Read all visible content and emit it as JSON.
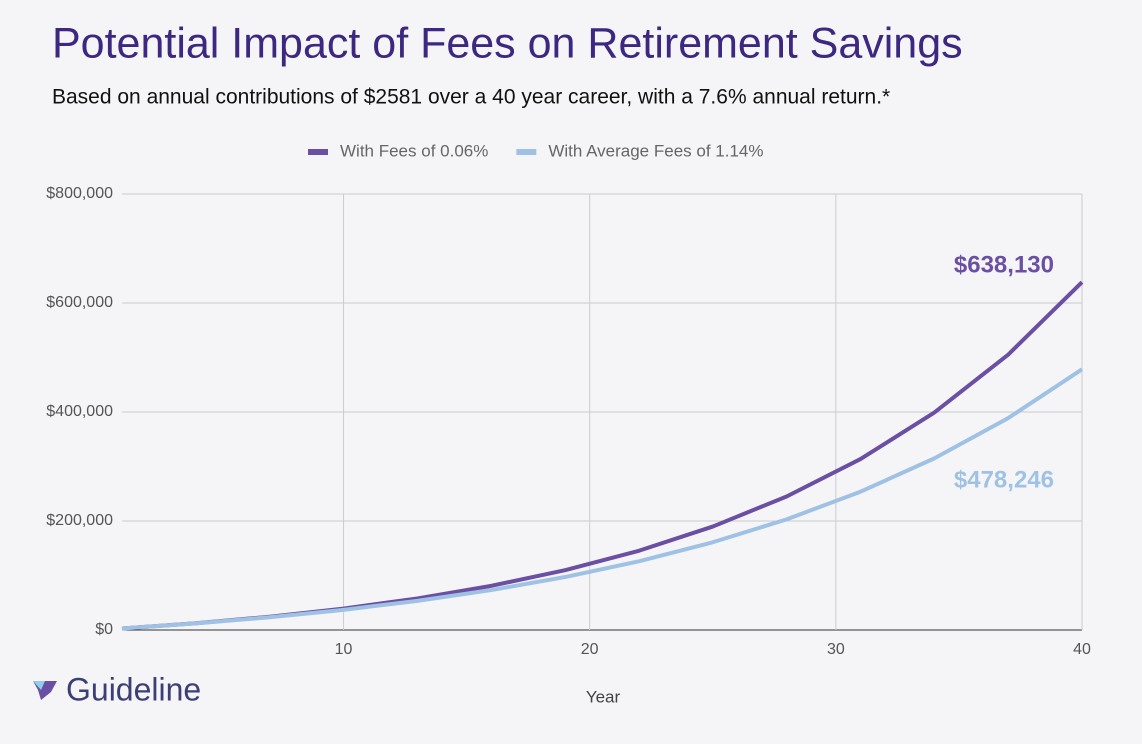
{
  "chart_data": {
    "type": "line",
    "title": "Potential Impact of Fees on Retirement Savings",
    "subtitle": "Based on annual contributions of $2581 over a 40 year career, with a 7.6% annual return.*",
    "x_label": "Year",
    "x": [
      1,
      4,
      7,
      10,
      13,
      16,
      19,
      22,
      25,
      28,
      31,
      34,
      37,
      40
    ],
    "series": [
      {
        "name": "With Fees of 0.06%",
        "color": "#6a4fa3",
        "values": [
          2800,
          12400,
          24400,
          39300,
          57900,
          81000,
          109700,
          145400,
          189800,
          245000,
          313600,
          399000,
          505200,
          638130
        ],
        "value_labels": [
          null,
          null,
          null,
          null,
          null,
          null,
          null,
          null,
          null,
          null,
          null,
          null,
          null,
          "$638,130"
        ]
      },
      {
        "name": "With Average Fees of 1.14%",
        "color": "#9fc2e4",
        "values": [
          2700,
          12100,
          23400,
          37000,
          53500,
          73300,
          97200,
          126100,
          161000,
          203000,
          253700,
          314900,
          388800,
          478246
        ],
        "value_labels": [
          null,
          null,
          null,
          null,
          null,
          null,
          null,
          null,
          null,
          null,
          null,
          null,
          null,
          "$478,246"
        ]
      }
    ],
    "xlim": [
      1,
      40
    ],
    "xticks": [
      10,
      20,
      30,
      40
    ],
    "ylim": [
      0,
      800000
    ],
    "yticks": [
      {
        "value": 0,
        "label": "$0"
      },
      {
        "value": 200000,
        "label": "$200,000"
      },
      {
        "value": 400000,
        "label": "$400,000"
      },
      {
        "value": 600000,
        "label": "$600,000"
      },
      {
        "value": 800000,
        "label": "$800,000"
      }
    ],
    "grid": true,
    "legend": "top"
  },
  "logo": "Guideline"
}
